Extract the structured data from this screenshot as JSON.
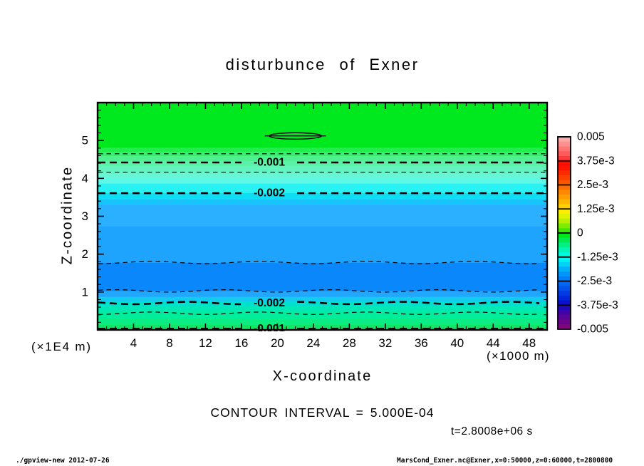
{
  "page": {
    "title": "disturbunce of Exner"
  },
  "chart_data": {
    "type": "heatmap",
    "plot_kind": "filled-contour",
    "title": "disturbunce of Exner",
    "xlabel": "X-coordinate",
    "ylabel": "Z-coordinate",
    "x_unit_label": "(×1000 m)",
    "y_unit_label": "(×1E4 m)",
    "x_range": [
      0,
      50
    ],
    "y_range": [
      0,
      6
    ],
    "x_ticks": [
      4,
      8,
      12,
      16,
      20,
      24,
      28,
      32,
      36,
      40,
      44,
      48
    ],
    "x_minor_step": 1,
    "y_ticks": [
      1,
      2,
      3,
      4,
      5
    ],
    "y_minor_step": 0.2,
    "contour_interval_label": "CONTOUR INTERVAL = 5.000E-04",
    "time_label": "t=2.8008e+06 s",
    "bands": [
      {
        "z_from": 4.81,
        "z_to": 6.0,
        "color": "#00e81e"
      },
      {
        "z_from": 4.7,
        "z_to": 4.81,
        "color": "#22ec4e"
      },
      {
        "z_from": 4.59,
        "z_to": 4.7,
        "color": "#3bee71"
      },
      {
        "z_from": 4.46,
        "z_to": 4.59,
        "color": "#4ff090"
      },
      {
        "z_from": 4.33,
        "z_to": 4.46,
        "color": "#5bf2a8"
      },
      {
        "z_from": 4.18,
        "z_to": 4.33,
        "color": "#63f4be"
      },
      {
        "z_from": 4.03,
        "z_to": 4.18,
        "color": "#68f6d2"
      },
      {
        "z_from": 3.86,
        "z_to": 4.03,
        "color": "#5ff7e5"
      },
      {
        "z_from": 3.61,
        "z_to": 3.86,
        "color": "#2bf2f2"
      },
      {
        "z_from": 3.44,
        "z_to": 3.61,
        "color": "#0fddf6"
      },
      {
        "z_from": 3.29,
        "z_to": 3.44,
        "color": "#18c2fb"
      },
      {
        "z_from": 2.73,
        "z_to": 3.29,
        "color": "#2bafff"
      },
      {
        "z_from": 1.77,
        "z_to": 2.73,
        "color": "#1fa4fe"
      },
      {
        "z_from": 1.03,
        "z_to": 1.77,
        "color": "#0987fb"
      },
      {
        "z_from": 0.87,
        "z_to": 1.03,
        "color": "#23a6fe"
      },
      {
        "z_from": 0.75,
        "z_to": 0.87,
        "color": "#13cbec"
      },
      {
        "z_from": 0.62,
        "z_to": 0.75,
        "color": "#00e0ce"
      },
      {
        "z_from": 0.47,
        "z_to": 0.62,
        "color": "#00e9b4"
      },
      {
        "z_from": 0.3,
        "z_to": 0.47,
        "color": "#00ee9c"
      },
      {
        "z_from": 0.13,
        "z_to": 0.3,
        "color": "#0bec82"
      },
      {
        "z_from": 0.0,
        "z_to": 0.13,
        "color": "#12e463"
      }
    ],
    "contours": [
      {
        "level": -0.0005,
        "z": 4.65,
        "weight": "thin",
        "wavy": false,
        "label": null
      },
      {
        "level": -0.001,
        "z": 4.42,
        "weight": "thick",
        "wavy": false,
        "label": "-0.001",
        "label_x": 19.1
      },
      {
        "level": -0.0015,
        "z": 4.16,
        "weight": "thin",
        "wavy": false,
        "label": null
      },
      {
        "level": -0.002,
        "z": 3.61,
        "weight": "thick",
        "wavy": false,
        "label": "-0.002",
        "label_x": 19.1
      },
      {
        "level": -0.0025,
        "z": 1.78,
        "weight": "thin",
        "wavy": true,
        "label": null
      },
      {
        "level": -0.0025,
        "z": 1.03,
        "weight": "thin",
        "wavy": true,
        "label": null
      },
      {
        "level": -0.002,
        "z": 0.71,
        "weight": "thick",
        "wavy": true,
        "label": "-0.002",
        "label_x": 19.1
      },
      {
        "level": -0.0015,
        "z": 0.44,
        "weight": "thin",
        "wavy": true,
        "label": null
      },
      {
        "level": -0.001,
        "z": 0.03,
        "weight": "thick",
        "wavy": false,
        "label": "-0.001",
        "label_x": 19.1
      }
    ],
    "closed_contour": {
      "x": 22,
      "z": 5.12,
      "rx": 2.9,
      "rz": 0.085,
      "tail": 3.4
    },
    "colorbar": {
      "labels": [
        "0.005",
        "3.75e-3",
        "2.5e-3",
        "1.25e-3",
        "0",
        "-1.25e-3",
        "-2.5e-3",
        "-3.75e-3",
        "-0.005"
      ],
      "segments": [
        [
          "#ffa8a8",
          "#ff9090",
          "#ff7474",
          "#ff5a5a",
          "#ff3c3c"
        ],
        [
          "#ff0c00",
          "#ff1400",
          "#ff2a00",
          "#ff4000",
          "#ff5600"
        ],
        [
          "#ff6e00",
          "#ff8600",
          "#ff9e00",
          "#ffb600",
          "#ffd000"
        ],
        [
          "#ffee00",
          "#dff200",
          "#b4f000",
          "#7eea00",
          "#42e600"
        ],
        [
          "#00e41c",
          "#00ea50",
          "#00f086",
          "#00f4b4",
          "#00f8dc"
        ],
        [
          "#00f4f4",
          "#00d2f6",
          "#00b0f8",
          "#0096fa",
          "#0080f8"
        ],
        [
          "#0068f4",
          "#0052ea",
          "#003ce2",
          "#0026da",
          "#0b10cc"
        ],
        [
          "#2406bc",
          "#4004aa",
          "#580498",
          "#6c048a",
          "#7c087c"
        ]
      ]
    }
  },
  "footer": {
    "left": "./gpview-new  2012-07-26",
    "right": "MarsCond_Exner.nc@Exner,x=0:50000,z=0:60000,t=2800800"
  }
}
